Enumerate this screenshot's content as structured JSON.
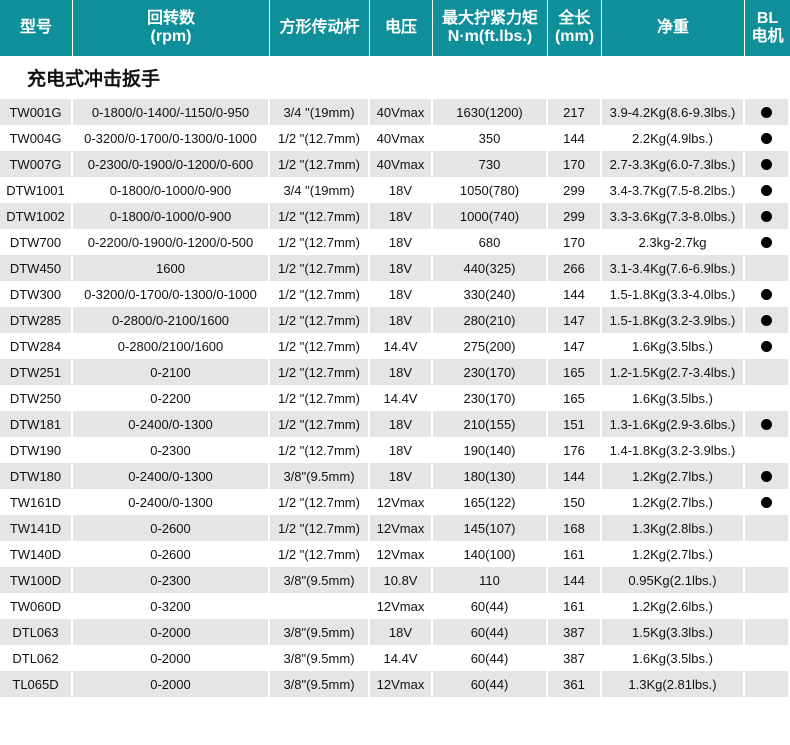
{
  "colors": {
    "header": "#0e8f99",
    "stripe": "#e5e5e5"
  },
  "headers": [
    "型号",
    "回转数\n(rpm)",
    "方形传动杆",
    "电压",
    "最大拧紧力矩\nN·m(ft.lbs.)",
    "全长\n(mm)",
    "净重",
    "BL\n电机"
  ],
  "section_title": "充电式冲击扳手",
  "rows": [
    [
      "TW001G",
      "0-1800/0-1400/-1150/0-950",
      "3/4 \"(19mm)",
      "40Vmax",
      "1630(1200)",
      "217",
      "3.9-4.2Kg(8.6-9.3lbs.)",
      true
    ],
    [
      "TW004G",
      "0-3200/0-1700/0-1300/0-1000",
      "1/2 \"(12.7mm)",
      "40Vmax",
      "350",
      "144",
      "2.2Kg(4.9lbs.)",
      true
    ],
    [
      "TW007G",
      "0-2300/0-1900/0-1200/0-600",
      "1/2 \"(12.7mm)",
      "40Vmax",
      "730",
      "170",
      "2.7-3.3Kg(6.0-7.3lbs.)",
      true
    ],
    [
      "DTW1001",
      "0-1800/0-1000/0-900",
      "3/4 \"(19mm)",
      "18V",
      "1050(780)",
      "299",
      "3.4-3.7Kg(7.5-8.2lbs.)",
      true
    ],
    [
      "DTW1002",
      "0-1800/0-1000/0-900",
      "1/2 \"(12.7mm)",
      "18V",
      "1000(740)",
      "299",
      "3.3-3.6Kg(7.3-8.0lbs.)",
      true
    ],
    [
      "DTW700",
      "0-2200/0-1900/0-1200/0-500",
      "1/2 \"(12.7mm)",
      "18V",
      "680",
      "170",
      "2.3kg-2.7kg",
      true
    ],
    [
      "DTW450",
      "1600",
      "1/2 \"(12.7mm)",
      "18V",
      "440(325)",
      "266",
      "3.1-3.4Kg(7.6-6.9lbs.)",
      false
    ],
    [
      "DTW300",
      "0-3200/0-1700/0-1300/0-1000",
      "1/2 \"(12.7mm)",
      "18V",
      "330(240)",
      "144",
      "1.5-1.8Kg(3.3-4.0lbs.)",
      true
    ],
    [
      "DTW285",
      "0-2800/0-2100/1600",
      "1/2 \"(12.7mm)",
      "18V",
      "280(210)",
      "147",
      "1.5-1.8Kg(3.2-3.9lbs.)",
      true
    ],
    [
      "DTW284",
      "0-2800/2100/1600",
      "1/2 \"(12.7mm)",
      "14.4V",
      "275(200)",
      "147",
      "1.6Kg(3.5lbs.)",
      true
    ],
    [
      "DTW251",
      "0-2100",
      "1/2 \"(12.7mm)",
      "18V",
      "230(170)",
      "165",
      "1.2-1.5Kg(2.7-3.4lbs.)",
      false
    ],
    [
      "DTW250",
      "0-2200",
      "1/2 \"(12.7mm)",
      "14.4V",
      "230(170)",
      "165",
      "1.6Kg(3.5lbs.)",
      false
    ],
    [
      "DTW181",
      "0-2400/0-1300",
      "1/2 \"(12.7mm)",
      "18V",
      "210(155)",
      "151",
      "1.3-1.6Kg(2.9-3.6lbs.)",
      true
    ],
    [
      "DTW190",
      "0-2300",
      "1/2 \"(12.7mm)",
      "18V",
      "190(140)",
      "176",
      "1.4-1.8Kg(3.2-3.9lbs.)",
      false
    ],
    [
      "DTW180",
      "0-2400/0-1300",
      "3/8\"(9.5mm)",
      "18V",
      "180(130)",
      "144",
      "1.2Kg(2.7lbs.)",
      true
    ],
    [
      "TW161D",
      "0-2400/0-1300",
      "1/2 \"(12.7mm)",
      "12Vmax",
      "165(122)",
      "150",
      "1.2Kg(2.7lbs.)",
      true
    ],
    [
      "TW141D",
      "0-2600",
      "1/2 \"(12.7mm)",
      "12Vmax",
      "145(107)",
      "168",
      "1.3Kg(2.8lbs.)",
      false
    ],
    [
      "TW140D",
      "0-2600",
      "1/2 \"(12.7mm)",
      "12Vmax",
      "140(100)",
      "161",
      "1.2Kg(2.7lbs.)",
      false
    ],
    [
      "TW100D",
      "0-2300",
      "3/8\"(9.5mm)",
      "10.8V",
      "110",
      "144",
      "0.95Kg(2.1lbs.)",
      false
    ],
    [
      "TW060D",
      "0-3200",
      "",
      "12Vmax",
      "60(44)",
      "161",
      "1.2Kg(2.6lbs.)",
      false
    ],
    [
      "DTL063",
      "0-2000",
      "3/8\"(9.5mm)",
      "18V",
      "60(44)",
      "387",
      "1.5Kg(3.3lbs.)",
      false
    ],
    [
      "DTL062",
      "0-2000",
      "3/8\"(9.5mm)",
      "14.4V",
      "60(44)",
      "387",
      "1.6Kg(3.5lbs.)",
      false
    ],
    [
      "TL065D",
      "0-2000",
      "3/8\"(9.5mm)",
      "12Vmax",
      "60(44)",
      "361",
      "1.3Kg(2.81lbs.)",
      false
    ]
  ]
}
